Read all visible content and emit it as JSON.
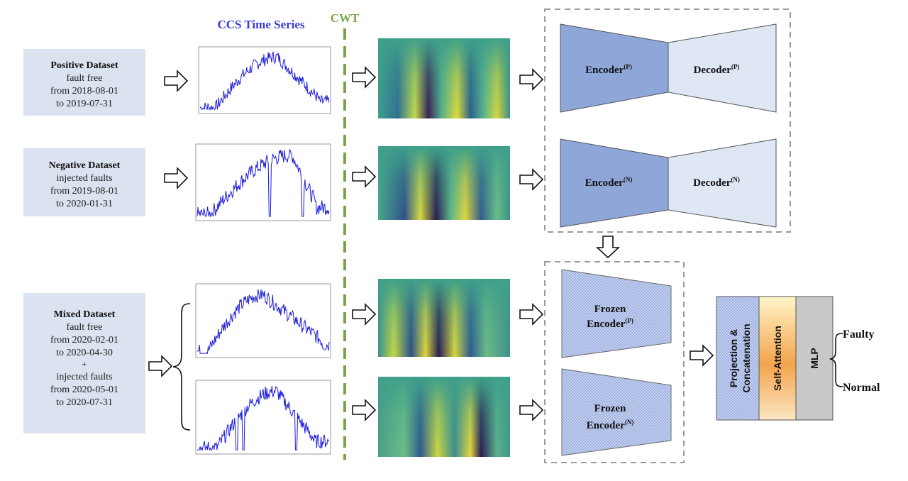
{
  "header": {
    "ccs_title": "CCS Time Series",
    "cwt_label": "CWT"
  },
  "datasets": [
    {
      "title": "Positive Dataset",
      "lines": [
        "fault free",
        "from 2018-08-01",
        "to 2019-07-31"
      ]
    },
    {
      "title": "Negative Dataset",
      "lines": [
        "injected faults",
        "from 2019-08-01",
        "to 2020-01-31"
      ]
    },
    {
      "title": "Mixed Dataset",
      "lines": [
        "fault free",
        "from 2020-02-01",
        "to 2020-04-30",
        "+",
        "injected faults",
        "from 2020-05-01",
        "to 2020-07-31"
      ]
    }
  ],
  "autoencoders": [
    {
      "encoder": "Encoder",
      "encoder_sup": "(P)",
      "decoder": "Decoder",
      "decoder_sup": "(P)"
    },
    {
      "encoder": "Encoder",
      "encoder_sup": "(N)",
      "decoder": "Decoder",
      "decoder_sup": "(N)"
    }
  ],
  "frozen": [
    {
      "line1": "Frozen",
      "line2": "Encoder",
      "sup": "(P)"
    },
    {
      "line1": "Frozen",
      "line2": "Encoder",
      "sup": "(N)"
    }
  ],
  "stack": {
    "projection_line1": "Projection &",
    "projection_line2": "Concatenation",
    "attention": "Self-Attention",
    "mlp": "MLP"
  },
  "outputs": {
    "faulty": "Faulty",
    "normal": "Normal"
  },
  "colors": {
    "series": "#1a1adb",
    "dataset_box": "#dbe2f0",
    "encoder": "#8fa6d9",
    "decoder": "#dfe6f4",
    "dashed_green": "#79a548",
    "title_blue": "#3b3bd6"
  }
}
